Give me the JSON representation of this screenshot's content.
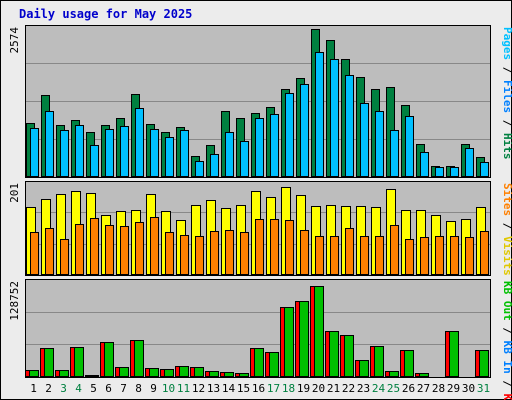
{
  "title": "Daily usage for May 2025",
  "chart_data": {
    "type": "bar",
    "title": "Daily usage for May 2025",
    "categories": [
      "1",
      "2",
      "3",
      "4",
      "5",
      "6",
      "7",
      "8",
      "9",
      "10",
      "11",
      "12",
      "13",
      "14",
      "15",
      "16",
      "17",
      "18",
      "19",
      "20",
      "21",
      "22",
      "23",
      "24",
      "25",
      "26",
      "27",
      "28",
      "29",
      "30",
      "31"
    ],
    "weekend_days": [
      "3",
      "4",
      "10",
      "11",
      "17",
      "18",
      "24",
      "25",
      "31"
    ],
    "panels": [
      {
        "id": "hits-files-pages",
        "max_label": "2574",
        "ymax": 2574,
        "axis_labels": [
          {
            "text": "Hits",
            "color": "#008040"
          },
          {
            "text": "Files",
            "color": "#0080ff"
          },
          {
            "text": "Pages",
            "color": "#00c0ff"
          }
        ],
        "series": [
          {
            "name": "Hits",
            "color": "#008040",
            "values": [
              940,
              1430,
              900,
              1000,
              780,
              900,
              1030,
              1440,
              920,
              790,
              870,
              370,
              560,
              1150,
              1020,
              1120,
              1220,
              1530,
              1720,
              2574,
              2390,
              2060,
              1740,
              1530,
              1560,
              1260,
              580,
              190,
              190,
              580,
              340
            ]
          },
          {
            "name": "Files",
            "color": "#0080ff",
            "values": [
              0,
              0,
              0,
              0,
              0,
              0,
              0,
              0,
              0,
              0,
              0,
              0,
              0,
              0,
              0,
              0,
              0,
              0,
              0,
              0,
              0,
              0,
              0,
              0,
              0,
              0,
              0,
              0,
              0,
              0,
              0
            ]
          },
          {
            "name": "Pages",
            "color": "#00c0ff",
            "values": [
              860,
              1140,
              810,
              910,
              550,
              830,
              880,
              1200,
              830,
              700,
              810,
              280,
              400,
              790,
              620,
              1030,
              1090,
              1460,
              1620,
              2170,
              2050,
              1770,
              1290,
              1140,
              820,
              1060,
              430,
              170,
              170,
              500,
              260
            ]
          }
        ]
      },
      {
        "id": "visits-sites",
        "max_label": "201",
        "ymax": 201,
        "axis_labels": [
          {
            "text": "Visits",
            "color": "#e0c800"
          },
          {
            "text": "Sites",
            "color": "#ff8000"
          }
        ],
        "series": [
          {
            "name": "Visits",
            "color": "#ffff00",
            "values": [
              152,
              170,
              182,
              188,
              184,
              133,
              143,
              145,
              180,
              142,
              123,
              156,
              168,
              150,
              157,
              188,
              174,
              196,
              178,
              154,
              156,
              154,
              154,
              151,
              193,
              145,
              145,
              135,
              121,
              124,
              151
            ]
          },
          {
            "name": "Sites",
            "color": "#ff8000",
            "values": [
              96,
              104,
              80,
              114,
              128,
              112,
              109,
              118,
              130,
              96,
              90,
              86,
              98,
              100,
              96,
              124,
              126,
              122,
              100,
              87,
              87,
              105,
              86,
              86,
              112,
              80,
              85,
              87,
              88,
              85,
              98
            ]
          }
        ]
      },
      {
        "id": "kb-f-in-out",
        "max_label": "128752",
        "ymax": 128752,
        "axis_labels": [
          {
            "text": "KB F",
            "color": "#ff0000"
          },
          {
            "text": "KB In",
            "color": "#0080ff"
          },
          {
            "text": "KB Out",
            "color": "#00c000"
          }
        ],
        "series": [
          {
            "name": "KB F",
            "color": "#ff0000",
            "values": [
              9400,
              39200,
              9000,
              41100,
              3400,
              47800,
              13900,
              51100,
              11700,
              10700,
              15400,
              13700,
              7700,
              7400,
              5000,
              39100,
              34500,
              95600,
              103800,
              124000,
              63300,
              57000,
              22900,
              42700,
              8000,
              37300,
              4900,
              1500,
              62400,
              1500,
              36900
            ]
          },
          {
            "name": "KB In",
            "color": "#0080ff",
            "values": [
              0,
              0,
              0,
              0,
              0,
              0,
              0,
              0,
              0,
              0,
              0,
              0,
              0,
              0,
              0,
              0,
              0,
              0,
              0,
              0,
              0,
              0,
              0,
              0,
              0,
              0,
              0,
              0,
              0,
              0,
              0
            ]
          },
          {
            "name": "KB Out",
            "color": "#00c000",
            "values": [
              9300,
              39200,
              9000,
              41100,
              3400,
              47800,
              13900,
              51100,
              11700,
              10700,
              15400,
              13700,
              7700,
              7400,
              5000,
              39100,
              34500,
              95600,
              103800,
              124000,
              63300,
              57000,
              22900,
              42700,
              8000,
              37300,
              4900,
              1500,
              62400,
              1500,
              36900
            ]
          }
        ]
      }
    ]
  },
  "colors": {
    "weekday_label": "#000000",
    "weekend_label": "#008040",
    "grid": "#888888"
  }
}
